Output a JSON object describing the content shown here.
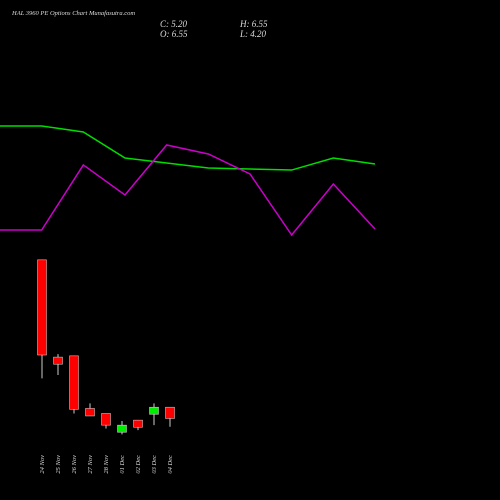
{
  "chart_data": [
    {
      "type": "line",
      "ylim": [
        0,
        100
      ],
      "series": [
        {
          "color": "#00dd00",
          "values": [
            82.7,
            82.7,
            78.7,
            61.3,
            58,
            54.7,
            54,
            53.3,
            61.3,
            57.3
          ]
        },
        {
          "color": "#cc00cc",
          "values": [
            13.3,
            13.3,
            56.7,
            36.7,
            70,
            64,
            50.7,
            10,
            44,
            14
          ]
        }
      ]
    },
    {
      "type": "candlestick",
      "title": "HAL 3960 PE Options Chart Munafasutra.com",
      "summary": [
        "C: 5.20",
        "H: 6.55",
        "O: 6.55",
        "L: 4.20"
      ],
      "categories": [
        "24 Nov",
        "25 Nov",
        "26 Nov",
        "27 Nov",
        "28 Nov",
        "01 Dec",
        "02 Dec",
        "03 Dec",
        "04 Dec"
      ],
      "open": [
        24.2,
        12.55,
        12.7,
        6.4,
        5.8,
        3.55,
        5.0,
        5.7,
        6.55
      ],
      "high": [
        24.2,
        12.9,
        12.7,
        7.0,
        5.8,
        4.9,
        5.0,
        7.0,
        6.55
      ],
      "low": [
        10.0,
        10.4,
        5.8,
        5.5,
        4.0,
        3.3,
        3.8,
        4.4,
        4.2
      ],
      "close": [
        12.8,
        11.7,
        6.3,
        5.5,
        4.4,
        4.4,
        4.15,
        6.55,
        5.2
      ],
      "up_color": "#00ee00",
      "down_color": "#ff0000",
      "ylim": [
        2.5,
        25.5
      ]
    }
  ]
}
